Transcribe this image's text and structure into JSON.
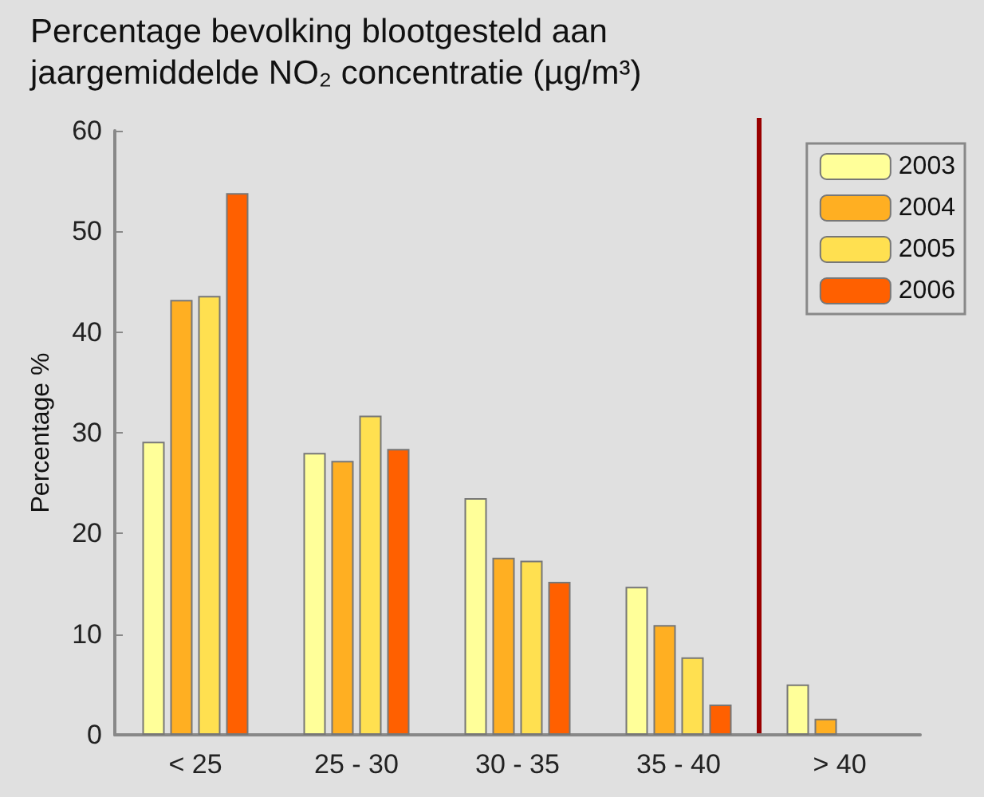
{
  "chart_data": {
    "type": "bar",
    "title": "Percentage bevolking blootgesteld aan\njaargemiddelde NO₂ concentratie (µg/m³)",
    "ylabel": "Percentage %",
    "categories": [
      "< 25",
      "25 - 30",
      "30 - 35",
      "35 - 40",
      "> 40"
    ],
    "series": [
      {
        "name": "2003",
        "color": "#ffff99",
        "values": [
          29.1,
          28.0,
          23.5,
          14.7,
          5.0
        ]
      },
      {
        "name": "2004",
        "color": "#ffaf22",
        "values": [
          43.2,
          27.2,
          17.6,
          10.9,
          1.6
        ]
      },
      {
        "name": "2005",
        "color": "#ffe050",
        "values": [
          43.6,
          31.7,
          17.3,
          7.7,
          null
        ]
      },
      {
        "name": "2006",
        "color": "#ff6000",
        "values": [
          53.8,
          28.4,
          15.2,
          3.0,
          null
        ]
      }
    ],
    "ylim": [
      0,
      60
    ],
    "yticks": [
      0,
      10,
      20,
      30,
      40,
      50,
      60
    ],
    "legend": "top right",
    "ref_lines": [
      {
        "axis": "x",
        "value": "> 40",
        "color": "#990000"
      }
    ]
  }
}
